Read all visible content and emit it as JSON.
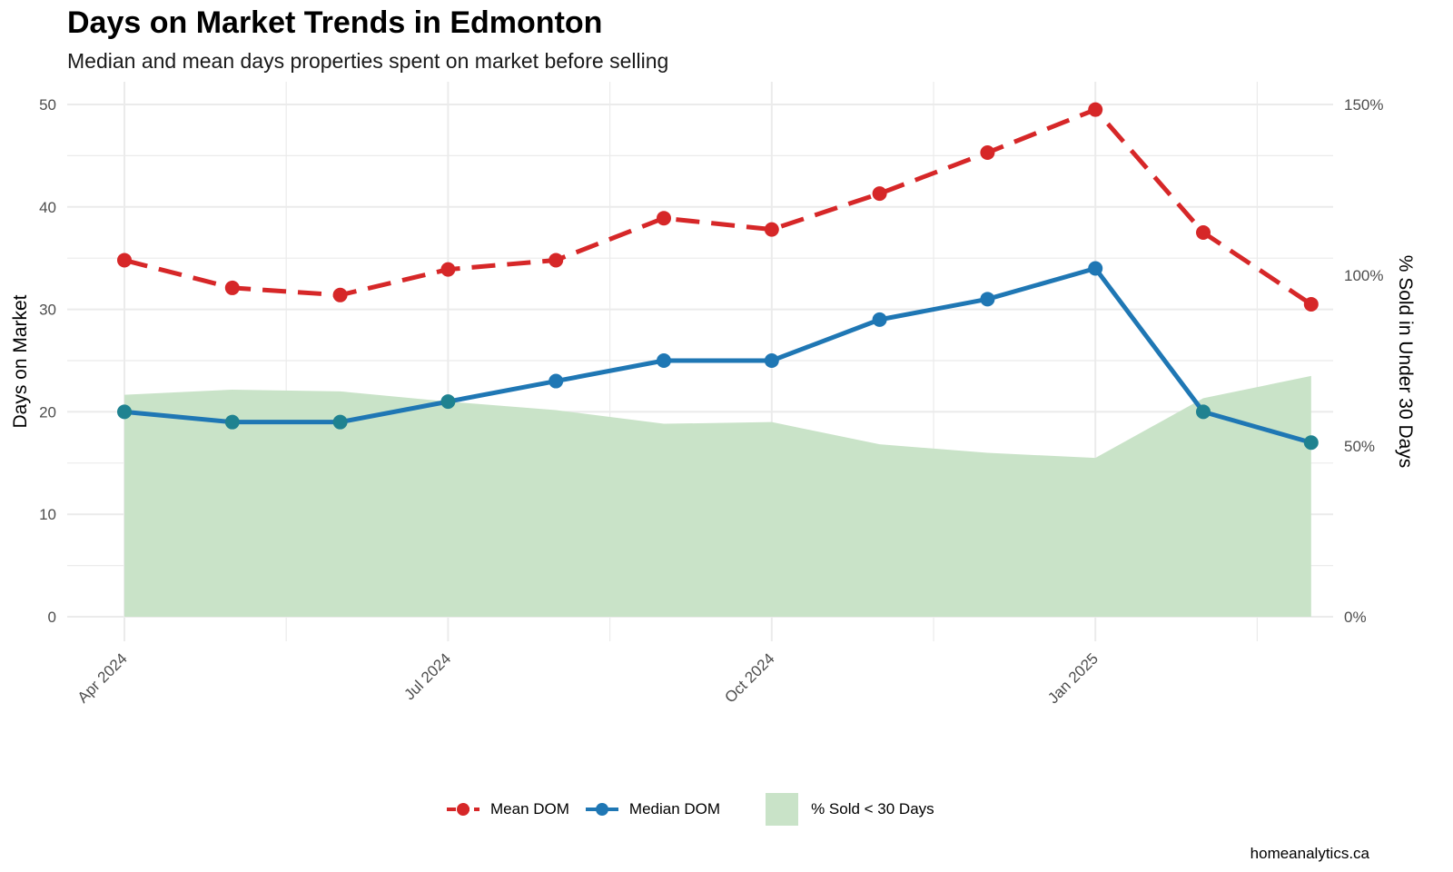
{
  "title": "Days on Market Trends in Edmonton",
  "subtitle": "Median and mean days properties spent on market before selling",
  "caption": "homeanalytics.ca",
  "colors": {
    "mean": "#d62728",
    "median": "#1f77b4",
    "area": "#c9e3c8",
    "grid": "#ebebeb",
    "median_over_area": "#1f8290"
  },
  "chart_data": {
    "type": "line",
    "x": [
      "2024-04",
      "2024-05",
      "2024-06",
      "2024-07",
      "2024-08",
      "2024-09",
      "2024-10",
      "2024-11",
      "2024-12",
      "2025-01",
      "2025-02",
      "2025-03"
    ],
    "xticks": [
      {
        "month_index": 0,
        "label": "Apr 2024"
      },
      {
        "month_index": 3,
        "label": "Jul 2024"
      },
      {
        "month_index": 6,
        "label": "Oct 2024"
      },
      {
        "month_index": 9,
        "label": "Jan 2025"
      }
    ],
    "ylabel": "Days on Market",
    "y2label": "% Sold in Under 30 Days",
    "ylim": [
      0,
      50
    ],
    "yticks": [
      0,
      10,
      20,
      30,
      40,
      50
    ],
    "y2lim": [
      0,
      150
    ],
    "y2ticks": [
      {
        "value": 0,
        "label": "0%"
      },
      {
        "value": 50,
        "label": "50%"
      },
      {
        "value": 100,
        "label": "100%"
      },
      {
        "value": 150,
        "label": "150%"
      }
    ],
    "grid": true,
    "legend_position": "bottom",
    "series": [
      {
        "name": "Mean DOM",
        "type": "line",
        "style": "dashed",
        "color": "#d62728",
        "axis": "left",
        "values": [
          34.8,
          32.1,
          31.4,
          33.9,
          34.8,
          38.9,
          37.8,
          41.3,
          45.3,
          49.5,
          37.5,
          30.5
        ]
      },
      {
        "name": "Median DOM",
        "type": "line",
        "style": "solid",
        "color": "#1f77b4",
        "axis": "left",
        "values": [
          20,
          19,
          19,
          21,
          23,
          25,
          25,
          29,
          31,
          34,
          20,
          17
        ]
      },
      {
        "name": "% Sold < 30 Days",
        "type": "area",
        "color": "#c9e3c8",
        "axis": "right",
        "values": [
          65,
          66.5,
          66,
          63,
          60.5,
          56.5,
          57,
          50.5,
          48,
          46.5,
          64,
          70.5
        ]
      }
    ]
  }
}
